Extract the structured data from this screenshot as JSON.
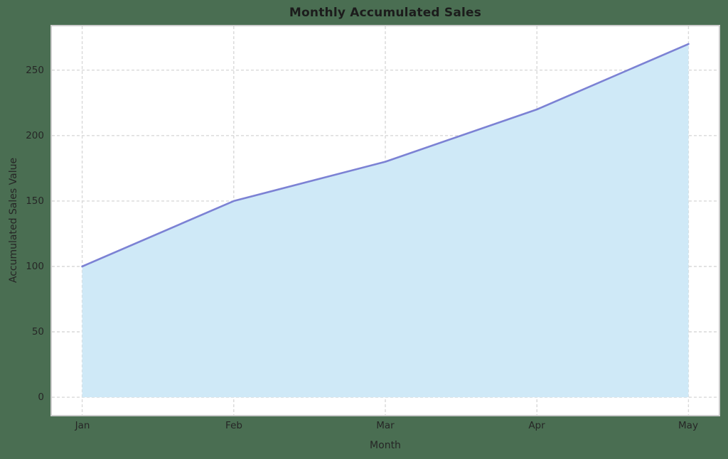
{
  "figure": {
    "background_color": "#4a6e52"
  },
  "chart_data": {
    "type": "area",
    "title": "Monthly Accumulated Sales",
    "xlabel": "Month",
    "ylabel": "Accumulated Sales Value",
    "categories": [
      "Jan",
      "Feb",
      "Mar",
      "Apr",
      "May"
    ],
    "values": [
      100,
      150,
      180,
      220,
      270
    ],
    "yticks": [
      0,
      50,
      100,
      150,
      200,
      250
    ],
    "ylim": [
      -13.5,
      283.5
    ],
    "xlim": [
      -0.2,
      4.2
    ],
    "grid": true,
    "legend": "none",
    "area_baseline": 0,
    "colors": {
      "line": "#7c82d4",
      "fill": "#cfe9f7",
      "plot_background": "#ffffff",
      "page_background": "#4a6e52",
      "grid": "#d9d9d9",
      "frame": "#cccccc",
      "text": "#262626"
    }
  }
}
